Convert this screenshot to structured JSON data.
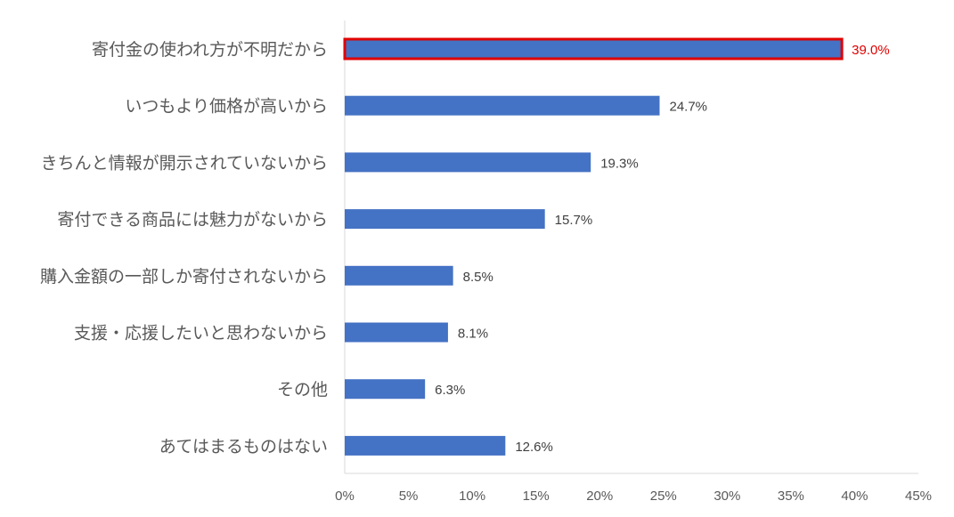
{
  "chart_data": {
    "type": "bar",
    "orientation": "horizontal",
    "categories": [
      "寄付金の使われ方が不明だから",
      "いつもより価格が高いから",
      "きちんと情報が開示されていないから",
      "寄付できる商品には魅力がないから",
      "購入金額の一部しか寄付されないから",
      "支援・応援したいと思わないから",
      "その他",
      "あてはまるものはない"
    ],
    "values": [
      39.0,
      24.7,
      19.3,
      15.7,
      8.5,
      8.1,
      6.3,
      12.6
    ],
    "value_labels": [
      "39.0%",
      "24.7%",
      "19.3%",
      "15.7%",
      "8.5%",
      "8.1%",
      "6.3%",
      "12.6%"
    ],
    "xlim": [
      0,
      45
    ],
    "x_ticks": [
      0,
      5,
      10,
      15,
      20,
      25,
      30,
      35,
      40,
      45
    ],
    "x_tick_labels": [
      "0%",
      "5%",
      "10%",
      "15%",
      "20%",
      "25%",
      "30%",
      "35%",
      "40%",
      "45%"
    ],
    "title": "",
    "xlabel": "",
    "ylabel": "",
    "grid": false,
    "legend": "none",
    "highlight_index": 0
  },
  "colors": {
    "bar": "#4472C4",
    "highlight_outline": "#E00000",
    "highlight_label": "#E00000",
    "axis": "#D9D9D9",
    "label": "#595959",
    "data_label": "#404040"
  }
}
